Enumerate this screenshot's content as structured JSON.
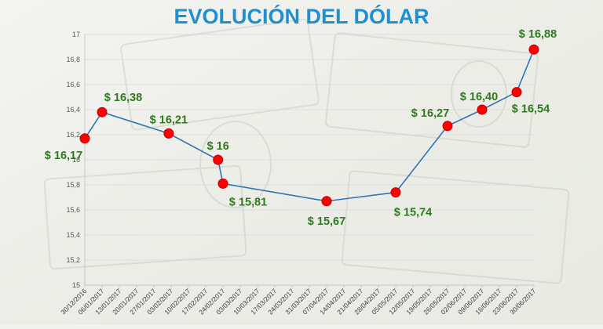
{
  "chart_data": {
    "type": "line",
    "title": "EVOLUCIÓN DEL DÓLAR",
    "ylim": [
      15,
      17
    ],
    "yticks": [
      "17",
      "16,8",
      "16,6",
      "16,4",
      "16,2",
      "16",
      "15,8",
      "15,6",
      "15,4",
      "15,2",
      "15"
    ],
    "x_tick_labels": [
      "30/12/2016",
      "06/01/2017",
      "13/01/2017",
      "20/01/2017",
      "27/01/2017",
      "03/02/2017",
      "10/02/2017",
      "17/02/2017",
      "24/02/2017",
      "03/03/2017",
      "10/03/2017",
      "17/03/2017",
      "24/03/2017",
      "31/03/2017",
      "07/04/2017",
      "14/04/2017",
      "21/04/2017",
      "28/04/2017",
      "05/05/2017",
      "12/05/2017",
      "19/05/2017",
      "26/05/2017",
      "02/06/2017",
      "09/06/2017",
      "16/06/2017",
      "23/06/2017",
      "30/06/2017"
    ],
    "series": [
      {
        "points": [
          {
            "x": "30/12/2016",
            "y": 16.17,
            "label": "$ 16,17"
          },
          {
            "x": "06/01/2017",
            "y": 16.38,
            "label": "$ 16,38"
          },
          {
            "x": "02/02/2017",
            "y": 16.21,
            "label": "$ 16,21"
          },
          {
            "x": "22/02/2017",
            "y": 16.0,
            "label": "$ 16"
          },
          {
            "x": "24/02/2017",
            "y": 15.81,
            "label": "$ 15,81"
          },
          {
            "x": "07/04/2017",
            "y": 15.67,
            "label": "$ 15,67"
          },
          {
            "x": "05/05/2017",
            "y": 15.74,
            "label": "$ 15,74"
          },
          {
            "x": "26/05/2017",
            "y": 16.27,
            "label": "$ 16,27"
          },
          {
            "x": "09/06/2017",
            "y": 16.4,
            "label": "$ 16,40"
          },
          {
            "x": "23/06/2017",
            "y": 16.54,
            "label": "$ 16,54"
          },
          {
            "x": "30/06/2017",
            "y": 16.88,
            "label": "$ 16,88"
          }
        ]
      }
    ],
    "grid": true,
    "colors": {
      "title": "#1f8fd0",
      "line": "#2e75b6",
      "marker": "#ff0000",
      "marker_stroke": "#c00000",
      "data_label": "#2f7a1f",
      "axis_text": "#595959",
      "grid": "#d9d9d9"
    }
  }
}
